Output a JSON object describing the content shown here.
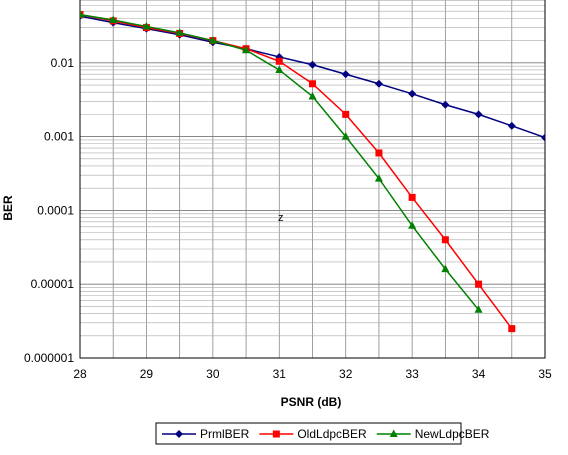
{
  "chart_data": {
    "type": "line",
    "title": "",
    "xlabel": "PSNR (dB)",
    "ylabel": "BER",
    "xlim": [
      28,
      35
    ],
    "ylim": [
      1e-06,
      0.06
    ],
    "y_scale": "log",
    "x_ticks": [
      28,
      29,
      30,
      31,
      32,
      33,
      34,
      35
    ],
    "x_tick_labels": [
      "28",
      "29",
      "30",
      "31",
      "32",
      "33",
      "34",
      "35"
    ],
    "y_ticks": [
      1e-06,
      1e-05,
      0.0001,
      0.001,
      0.01
    ],
    "y_tick_labels": [
      "0.000001",
      "0.00001",
      "0.0001",
      "0.001",
      "0.01"
    ],
    "grid": true,
    "legend_position": "bottom",
    "annotation": "z",
    "series": [
      {
        "name": "PrmlBER",
        "color": "#000080",
        "marker": "diamond",
        "x": [
          28,
          28.5,
          29,
          29.5,
          30,
          30.5,
          31,
          31.5,
          32,
          32.5,
          33,
          33.5,
          34,
          34.5,
          35
        ],
        "y": [
          0.043,
          0.035,
          0.029,
          0.024,
          0.019,
          0.0155,
          0.012,
          0.0094,
          0.007,
          0.0052,
          0.0038,
          0.0027,
          0.002,
          0.0014,
          0.00097
        ]
      },
      {
        "name": "OldLdpcBER",
        "color": "#ff0000",
        "marker": "square",
        "x": [
          28,
          28.5,
          29,
          29.5,
          30,
          30.5,
          31,
          31.5,
          32,
          32.5,
          33,
          33.5,
          34,
          34.5
        ],
        "y": [
          0.045,
          0.037,
          0.03,
          0.025,
          0.02,
          0.0155,
          0.0105,
          0.0052,
          0.002,
          0.0006,
          0.00015,
          4e-05,
          1e-05,
          2.5e-06
        ]
      },
      {
        "name": "NewLdpcBER",
        "color": "#008000",
        "marker": "triangle",
        "x": [
          28,
          28.5,
          29,
          29.5,
          30,
          30.5,
          31,
          31.5,
          32,
          32.5,
          33,
          33.5,
          34
        ],
        "y": [
          0.045,
          0.038,
          0.031,
          0.0255,
          0.02,
          0.0148,
          0.008,
          0.0035,
          0.001,
          0.00027,
          6.2e-05,
          1.6e-05,
          4.5e-06
        ]
      }
    ]
  }
}
